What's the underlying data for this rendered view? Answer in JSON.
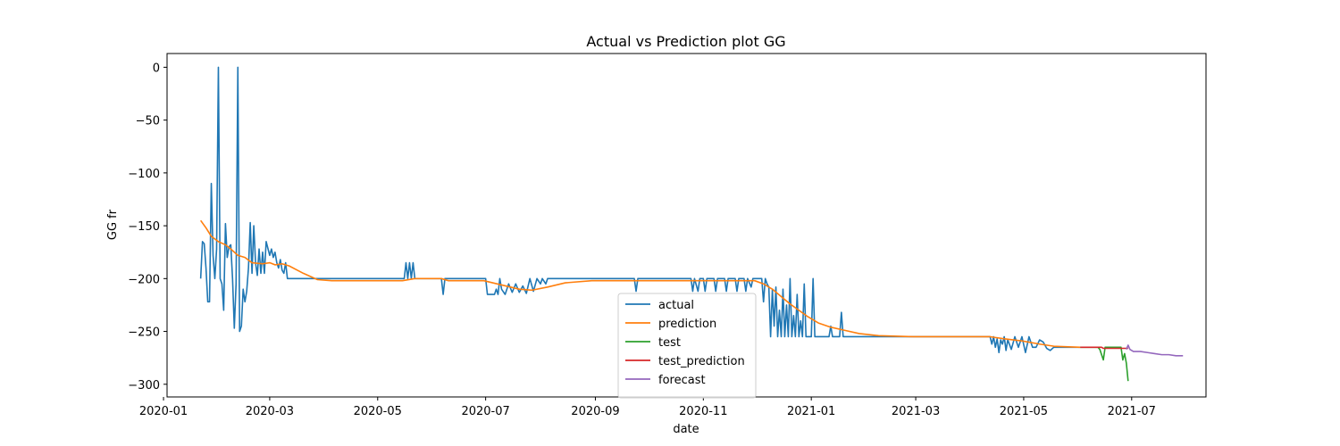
{
  "chart_data": {
    "type": "line",
    "title": "Actual vs Prediction plot GG",
    "xlabel": "date",
    "ylabel": "GG fr",
    "xlim": [
      "2020-01-03",
      "2021-08-12"
    ],
    "ylim": [
      -312,
      13
    ],
    "x_ticks": [
      "2020-01",
      "2020-03",
      "2020-05",
      "2020-07",
      "2020-09",
      "2020-11",
      "2021-01",
      "2021-03",
      "2021-05",
      "2021-07"
    ],
    "y_ticks": [
      0,
      -50,
      -100,
      -150,
      -200,
      -250,
      -300
    ],
    "y_tick_labels": [
      "0",
      "−50",
      "−100",
      "−150",
      "−200",
      "−250",
      "−300"
    ],
    "grid": false,
    "legend_position": "lower-center",
    "series": [
      {
        "name": "actual",
        "color": "#1f77b4",
        "points": [
          [
            "2020-01-22",
            -200
          ],
          [
            "2020-01-23",
            -165
          ],
          [
            "2020-01-24",
            -167
          ],
          [
            "2020-01-25",
            -190
          ],
          [
            "2020-01-26",
            -222
          ],
          [
            "2020-01-27",
            -222
          ],
          [
            "2020-01-28",
            -110
          ],
          [
            "2020-01-29",
            -178
          ],
          [
            "2020-01-30",
            -200
          ],
          [
            "2020-01-31",
            -172
          ],
          [
            "2020-02-01",
            0
          ],
          [
            "2020-02-02",
            -200
          ],
          [
            "2020-02-03",
            -205
          ],
          [
            "2020-02-04",
            -230
          ],
          [
            "2020-02-05",
            -148
          ],
          [
            "2020-02-06",
            -180
          ],
          [
            "2020-02-07",
            -170
          ],
          [
            "2020-02-08",
            -168
          ],
          [
            "2020-02-09",
            -200
          ],
          [
            "2020-02-10",
            -247
          ],
          [
            "2020-02-11",
            -205
          ],
          [
            "2020-02-12",
            0
          ],
          [
            "2020-02-13",
            -250
          ],
          [
            "2020-02-14",
            -245
          ],
          [
            "2020-02-15",
            -210
          ],
          [
            "2020-02-16",
            -222
          ],
          [
            "2020-02-17",
            -212
          ],
          [
            "2020-02-18",
            -190
          ],
          [
            "2020-02-19",
            -147
          ],
          [
            "2020-02-20",
            -195
          ],
          [
            "2020-02-21",
            -150
          ],
          [
            "2020-02-22",
            -185
          ],
          [
            "2020-02-23",
            -197
          ],
          [
            "2020-02-24",
            -172
          ],
          [
            "2020-02-25",
            -195
          ],
          [
            "2020-02-26",
            -175
          ],
          [
            "2020-02-27",
            -195
          ],
          [
            "2020-02-28",
            -165
          ],
          [
            "2020-03-01",
            -178
          ],
          [
            "2020-03-02",
            -172
          ],
          [
            "2020-03-03",
            -180
          ],
          [
            "2020-03-04",
            -175
          ],
          [
            "2020-03-05",
            -185
          ],
          [
            "2020-03-06",
            -190
          ],
          [
            "2020-03-07",
            -182
          ],
          [
            "2020-03-08",
            -192
          ],
          [
            "2020-03-09",
            -195
          ],
          [
            "2020-03-10",
            -185
          ],
          [
            "2020-03-11",
            -200
          ],
          [
            "2020-05-16",
            -200
          ],
          [
            "2020-05-17",
            -185
          ],
          [
            "2020-05-18",
            -200
          ],
          [
            "2020-05-19",
            -185
          ],
          [
            "2020-05-20",
            -200
          ],
          [
            "2020-05-21",
            -185
          ],
          [
            "2020-05-22",
            -200
          ],
          [
            "2020-06-06",
            -200
          ],
          [
            "2020-06-07",
            -215
          ],
          [
            "2020-06-08",
            -200
          ],
          [
            "2020-07-01",
            -200
          ],
          [
            "2020-07-02",
            -215
          ],
          [
            "2020-07-06",
            -215
          ],
          [
            "2020-07-07",
            -210
          ],
          [
            "2020-07-08",
            -215
          ],
          [
            "2020-07-09",
            -200
          ],
          [
            "2020-07-10",
            -210
          ],
          [
            "2020-07-12",
            -215
          ],
          [
            "2020-07-14",
            -205
          ],
          [
            "2020-07-16",
            -213
          ],
          [
            "2020-07-18",
            -205
          ],
          [
            "2020-07-20",
            -213
          ],
          [
            "2020-07-22",
            -207
          ],
          [
            "2020-07-24",
            -214
          ],
          [
            "2020-07-26",
            -200
          ],
          [
            "2020-07-28",
            -212
          ],
          [
            "2020-07-30",
            -200
          ],
          [
            "2020-08-01",
            -205
          ],
          [
            "2020-08-02",
            -200
          ],
          [
            "2020-08-04",
            -205
          ],
          [
            "2020-08-05",
            -200
          ],
          [
            "2020-09-23",
            -200
          ],
          [
            "2020-09-24",
            -212
          ],
          [
            "2020-09-25",
            -200
          ],
          [
            "2020-10-25",
            -200
          ],
          [
            "2020-10-26",
            -212
          ],
          [
            "2020-10-27",
            -200
          ],
          [
            "2020-10-29",
            -212
          ],
          [
            "2020-10-30",
            -200
          ],
          [
            "2020-11-01",
            -200
          ],
          [
            "2020-11-02",
            -212
          ],
          [
            "2020-11-03",
            -200
          ],
          [
            "2020-11-07",
            -200
          ],
          [
            "2020-11-08",
            -212
          ],
          [
            "2020-11-09",
            -200
          ],
          [
            "2020-11-13",
            -200
          ],
          [
            "2020-11-14",
            -212
          ],
          [
            "2020-11-15",
            -200
          ],
          [
            "2020-11-19",
            -200
          ],
          [
            "2020-11-20",
            -212
          ],
          [
            "2020-11-21",
            -200
          ],
          [
            "2020-11-24",
            -200
          ],
          [
            "2020-11-25",
            -212
          ],
          [
            "2020-11-26",
            -200
          ],
          [
            "2020-11-28",
            -208
          ],
          [
            "2020-11-29",
            -200
          ],
          [
            "2020-12-04",
            -200
          ],
          [
            "2020-12-05",
            -222
          ],
          [
            "2020-12-06",
            -200
          ],
          [
            "2020-12-07",
            -205
          ],
          [
            "2020-12-08",
            -208
          ],
          [
            "2020-12-09",
            -255
          ],
          [
            "2020-12-10",
            -210
          ],
          [
            "2020-12-11",
            -245
          ],
          [
            "2020-12-12",
            -208
          ],
          [
            "2020-12-13",
            -255
          ],
          [
            "2020-12-14",
            -230
          ],
          [
            "2020-12-15",
            -255
          ],
          [
            "2020-12-16",
            -210
          ],
          [
            "2020-12-17",
            -255
          ],
          [
            "2020-12-18",
            -225
          ],
          [
            "2020-12-19",
            -255
          ],
          [
            "2020-12-20",
            -200
          ],
          [
            "2020-12-21",
            -255
          ],
          [
            "2020-12-22",
            -235
          ],
          [
            "2020-12-23",
            -255
          ],
          [
            "2020-12-24",
            -215
          ],
          [
            "2020-12-25",
            -255
          ],
          [
            "2020-12-26",
            -240
          ],
          [
            "2020-12-27",
            -255
          ],
          [
            "2020-12-28",
            -205
          ],
          [
            "2020-12-29",
            -255
          ],
          [
            "2020-12-30",
            -255
          ],
          [
            "2021-01-01",
            -255
          ],
          [
            "2021-01-02",
            -200
          ],
          [
            "2021-01-03",
            -255
          ],
          [
            "2021-01-11",
            -255
          ],
          [
            "2021-01-12",
            -245
          ],
          [
            "2021-01-13",
            -255
          ],
          [
            "2021-01-17",
            -255
          ],
          [
            "2021-01-18",
            -232
          ],
          [
            "2021-01-19",
            -255
          ],
          [
            "2021-04-12",
            -255
          ],
          [
            "2021-04-13",
            -262
          ],
          [
            "2021-04-14",
            -255
          ],
          [
            "2021-04-15",
            -265
          ],
          [
            "2021-04-16",
            -257
          ],
          [
            "2021-04-17",
            -270
          ],
          [
            "2021-04-18",
            -258
          ],
          [
            "2021-04-19",
            -262
          ],
          [
            "2021-04-20",
            -255
          ],
          [
            "2021-04-21",
            -268
          ],
          [
            "2021-04-22",
            -258
          ],
          [
            "2021-04-24",
            -267
          ],
          [
            "2021-04-26",
            -255
          ],
          [
            "2021-04-28",
            -265
          ],
          [
            "2021-04-30",
            -255
          ],
          [
            "2021-05-02",
            -270
          ],
          [
            "2021-05-04",
            -255
          ],
          [
            "2021-05-06",
            -265
          ],
          [
            "2021-05-08",
            -265
          ],
          [
            "2021-05-10",
            -258
          ],
          [
            "2021-05-12",
            -260
          ],
          [
            "2021-05-14",
            -266
          ],
          [
            "2021-05-16",
            -268
          ],
          [
            "2021-05-18",
            -265
          ],
          [
            "2021-06-02",
            -265
          ]
        ]
      },
      {
        "name": "prediction",
        "color": "#ff7f0e",
        "points": [
          [
            "2020-01-22",
            -145
          ],
          [
            "2020-01-25",
            -152
          ],
          [
            "2020-01-28",
            -160
          ],
          [
            "2020-02-01",
            -165
          ],
          [
            "2020-02-05",
            -168
          ],
          [
            "2020-02-08",
            -172
          ],
          [
            "2020-02-12",
            -178
          ],
          [
            "2020-02-16",
            -180
          ],
          [
            "2020-02-20",
            -185
          ],
          [
            "2020-02-26",
            -186
          ],
          [
            "2020-03-01",
            -185
          ],
          [
            "2020-03-04",
            -187
          ],
          [
            "2020-03-08",
            -186
          ],
          [
            "2020-03-12",
            -188
          ],
          [
            "2020-03-20",
            -195
          ],
          [
            "2020-03-28",
            -201
          ],
          [
            "2020-04-05",
            -202
          ],
          [
            "2020-05-15",
            -202
          ],
          [
            "2020-05-22",
            -200
          ],
          [
            "2020-06-06",
            -200
          ],
          [
            "2020-06-10",
            -202
          ],
          [
            "2020-06-30",
            -202
          ],
          [
            "2020-07-10",
            -206
          ],
          [
            "2020-07-20",
            -210
          ],
          [
            "2020-07-27",
            -211
          ],
          [
            "2020-08-05",
            -208
          ],
          [
            "2020-08-15",
            -204
          ],
          [
            "2020-08-30",
            -202
          ],
          [
            "2020-09-25",
            -202
          ],
          [
            "2020-10-10",
            -202
          ],
          [
            "2020-11-30",
            -202
          ],
          [
            "2020-12-05",
            -205
          ],
          [
            "2020-12-10",
            -210
          ],
          [
            "2020-12-15",
            -217
          ],
          [
            "2020-12-20",
            -224
          ],
          [
            "2020-12-25",
            -230
          ],
          [
            "2020-12-30",
            -236
          ],
          [
            "2021-01-05",
            -242
          ],
          [
            "2021-01-12",
            -246
          ],
          [
            "2021-01-20",
            -249
          ],
          [
            "2021-01-28",
            -252
          ],
          [
            "2021-02-08",
            -254
          ],
          [
            "2021-02-28",
            -255
          ],
          [
            "2021-04-12",
            -255
          ],
          [
            "2021-04-20",
            -257
          ],
          [
            "2021-04-30",
            -259
          ],
          [
            "2021-05-10",
            -262
          ],
          [
            "2021-05-18",
            -264
          ],
          [
            "2021-06-02",
            -265
          ]
        ]
      },
      {
        "name": "test",
        "color": "#2ca02c",
        "points": [
          [
            "2021-06-02",
            -265
          ],
          [
            "2021-06-12",
            -265
          ],
          [
            "2021-06-13",
            -267
          ],
          [
            "2021-06-15",
            -277
          ],
          [
            "2021-06-16",
            -265
          ],
          [
            "2021-06-25",
            -265
          ],
          [
            "2021-06-26",
            -277
          ],
          [
            "2021-06-27",
            -271
          ],
          [
            "2021-06-28",
            -280
          ],
          [
            "2021-06-29",
            -297
          ]
        ]
      },
      {
        "name": "test_prediction",
        "color": "#d62728",
        "points": [
          [
            "2021-06-02",
            -265
          ],
          [
            "2021-06-14",
            -265
          ],
          [
            "2021-06-15",
            -266
          ],
          [
            "2021-06-29",
            -266
          ]
        ]
      },
      {
        "name": "forecast",
        "color": "#9467bd",
        "points": [
          [
            "2021-06-28",
            -267
          ],
          [
            "2021-06-29",
            -263
          ],
          [
            "2021-06-30",
            -267
          ],
          [
            "2021-07-02",
            -269
          ],
          [
            "2021-07-06",
            -269
          ],
          [
            "2021-07-10",
            -270
          ],
          [
            "2021-07-14",
            -271
          ],
          [
            "2021-07-18",
            -272
          ],
          [
            "2021-07-22",
            -272
          ],
          [
            "2021-07-26",
            -273
          ],
          [
            "2021-07-30",
            -273
          ]
        ]
      }
    ]
  }
}
